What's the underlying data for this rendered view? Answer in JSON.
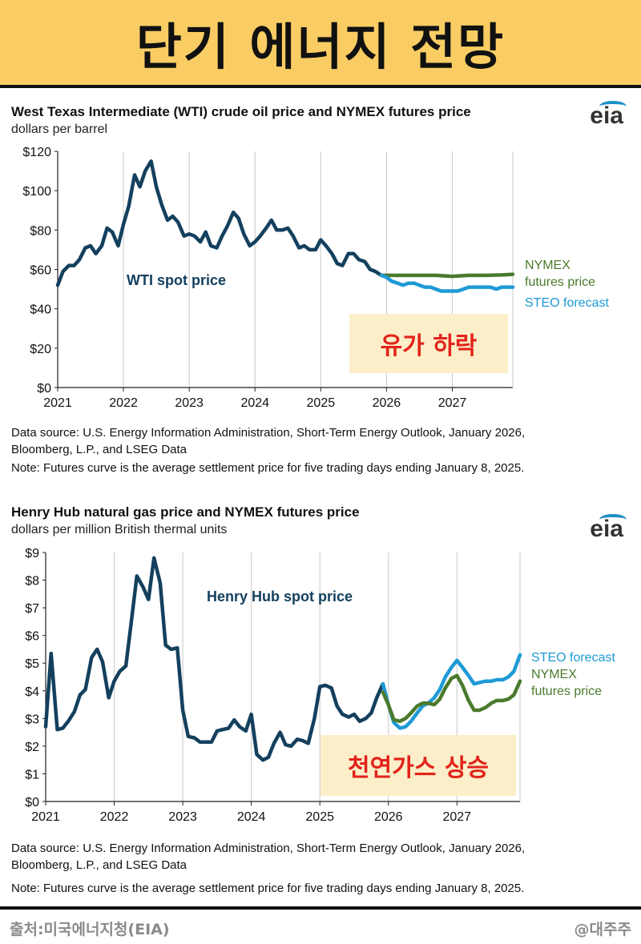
{
  "banner": {
    "title": "단기 에너지 전망"
  },
  "footer": {
    "source": "출처:미국에너지청(EIA)",
    "handle": "@대주주"
  },
  "colors": {
    "banner": "#f9cd63",
    "spot": "#14405e",
    "nymex": "#4a7a2c",
    "steo": "#1e9ad6",
    "callout_bg": "#fbeec9",
    "callout_text": "#e2231a"
  },
  "chart_data": [
    {
      "type": "line",
      "title": "West Texas Intermediate (WTI) crude oil price and NYMEX futures price",
      "ylabel": "dollars per barrel",
      "logo": "eia",
      "xlabel": "",
      "x_ticks": [
        "2021",
        "2022",
        "2023",
        "2024",
        "2025",
        "2026",
        "2027"
      ],
      "y_ticks": [
        "$0",
        "$20",
        "$40",
        "$60",
        "$80",
        "$100",
        "$120"
      ],
      "y_tick_values": [
        0,
        20,
        40,
        60,
        80,
        100,
        120
      ],
      "ylim": [
        0,
        120
      ],
      "xlim": [
        2021.0,
        2027.92
      ],
      "grid": "vertical",
      "series": [
        {
          "name": "WTI spot price",
          "label": "WTI spot price",
          "color": "#14405e",
          "x": [
            2021.0,
            2021.08,
            2021.17,
            2021.25,
            2021.33,
            2021.42,
            2021.5,
            2021.58,
            2021.67,
            2021.75,
            2021.83,
            2021.92,
            2022.0,
            2022.08,
            2022.17,
            2022.25,
            2022.33,
            2022.42,
            2022.5,
            2022.58,
            2022.67,
            2022.75,
            2022.83,
            2022.92,
            2023.0,
            2023.08,
            2023.17,
            2023.25,
            2023.33,
            2023.42,
            2023.5,
            2023.58,
            2023.67,
            2023.75,
            2023.83,
            2023.92,
            2024.0,
            2024.08,
            2024.17,
            2024.25,
            2024.33,
            2024.42,
            2024.5,
            2024.58,
            2024.67,
            2024.75,
            2024.83,
            2024.92,
            2025.0,
            2025.08,
            2025.17,
            2025.25,
            2025.33,
            2025.42,
            2025.5,
            2025.58,
            2025.67,
            2025.75,
            2025.83,
            2025.92
          ],
          "y": [
            52,
            59,
            62,
            62,
            65,
            71,
            72,
            68,
            72,
            81,
            79,
            72,
            83,
            92,
            108,
            102,
            110,
            115,
            102,
            93,
            85,
            87,
            84,
            77,
            78,
            77,
            74,
            79,
            72,
            71,
            77,
            82,
            89,
            86,
            78,
            72,
            74,
            77,
            81,
            85,
            80,
            80,
            81,
            77,
            71,
            72,
            70,
            70,
            75,
            72,
            68,
            63,
            62,
            68,
            68,
            65,
            64,
            60,
            59,
            57
          ]
        },
        {
          "name": "NYMEX futures price",
          "label": "NYMEX futures price",
          "color": "#4a7a2c",
          "x": [
            2025.92,
            2026.0,
            2026.25,
            2026.5,
            2026.75,
            2027.0,
            2027.25,
            2027.5,
            2027.75,
            2027.92
          ],
          "y": [
            57,
            57,
            57,
            57,
            57,
            56.5,
            57,
            57,
            57.2,
            57.5
          ]
        },
        {
          "name": "STEO forecast",
          "label": "STEO forecast",
          "color": "#1e9ad6",
          "x": [
            2025.92,
            2026.0,
            2026.08,
            2026.17,
            2026.25,
            2026.33,
            2026.42,
            2026.5,
            2026.58,
            2026.67,
            2026.75,
            2026.83,
            2026.92,
            2027.0,
            2027.08,
            2027.17,
            2027.25,
            2027.33,
            2027.42,
            2027.5,
            2027.58,
            2027.67,
            2027.75,
            2027.83,
            2027.92
          ],
          "y": [
            57,
            56,
            54,
            53,
            52,
            53,
            53,
            52,
            51,
            51,
            50,
            49,
            49,
            49,
            49,
            50,
            51,
            51,
            51,
            51,
            51,
            50,
            51,
            51,
            51
          ]
        }
      ],
      "callout": "유가 하락",
      "notes": [
        "Data source: U.S. Energy Information Administration, Short-Term Energy Outlook, January 2026,",
        "Bloomberg, L.P., and LSEG Data",
        "Note: Futures curve is the average settlement price for five trading days ending January 8, 2025."
      ]
    },
    {
      "type": "line",
      "title": "Henry Hub natural gas price and NYMEX futures price",
      "ylabel": "dollars per million British thermal units",
      "logo": "eia",
      "xlabel": "",
      "x_ticks": [
        "2021",
        "2022",
        "2023",
        "2024",
        "2025",
        "2026",
        "2027"
      ],
      "y_ticks": [
        "$0",
        "$1",
        "$2",
        "$3",
        "$4",
        "$5",
        "$6",
        "$7",
        "$8",
        "$9"
      ],
      "y_tick_values": [
        0,
        1,
        2,
        3,
        4,
        5,
        6,
        7,
        8,
        9
      ],
      "ylim": [
        0,
        9
      ],
      "xlim": [
        2021.0,
        2027.92
      ],
      "grid": "vertical",
      "series": [
        {
          "name": "Henry Hub spot price",
          "label": "Henry Hub spot price",
          "color": "#14405e",
          "x": [
            2021.0,
            2021.08,
            2021.17,
            2021.25,
            2021.33,
            2021.42,
            2021.5,
            2021.58,
            2021.67,
            2021.75,
            2021.83,
            2021.92,
            2022.0,
            2022.08,
            2022.17,
            2022.25,
            2022.33,
            2022.42,
            2022.5,
            2022.58,
            2022.67,
            2022.75,
            2022.83,
            2022.92,
            2023.0,
            2023.08,
            2023.17,
            2023.25,
            2023.33,
            2023.42,
            2023.5,
            2023.58,
            2023.67,
            2023.75,
            2023.83,
            2023.92,
            2024.0,
            2024.08,
            2024.17,
            2024.25,
            2024.33,
            2024.42,
            2024.5,
            2024.58,
            2024.67,
            2024.75,
            2024.83,
            2024.92,
            2025.0,
            2025.08,
            2025.17,
            2025.25,
            2025.33,
            2025.42,
            2025.5,
            2025.58,
            2025.67,
            2025.75,
            2025.83,
            2025.92
          ],
          "y": [
            2.7,
            5.35,
            2.6,
            2.65,
            2.9,
            3.25,
            3.85,
            4.05,
            5.2,
            5.5,
            5.05,
            3.75,
            4.35,
            4.7,
            4.9,
            6.5,
            8.15,
            7.75,
            7.3,
            8.8,
            7.9,
            5.65,
            5.5,
            5.55,
            3.3,
            2.35,
            2.3,
            2.15,
            2.15,
            2.15,
            2.55,
            2.6,
            2.65,
            2.95,
            2.7,
            2.55,
            3.15,
            1.7,
            1.5,
            1.6,
            2.1,
            2.5,
            2.05,
            2.0,
            2.25,
            2.2,
            2.1,
            3.0,
            4.15,
            4.2,
            4.1,
            3.45,
            3.15,
            3.05,
            3.15,
            2.9,
            3.0,
            3.2,
            3.75,
            4.25
          ]
        },
        {
          "name": "STEO forecast",
          "label": "STEO forecast",
          "color": "#1e9ad6",
          "x": [
            2025.92,
            2026.0,
            2026.08,
            2026.17,
            2026.25,
            2026.33,
            2026.42,
            2026.5,
            2026.58,
            2026.67,
            2026.75,
            2026.83,
            2026.92,
            2027.0,
            2027.08,
            2027.17,
            2027.25,
            2027.33,
            2027.42,
            2027.5,
            2027.58,
            2027.67,
            2027.75,
            2027.83,
            2027.92
          ],
          "y": [
            4.25,
            3.5,
            2.85,
            2.65,
            2.7,
            2.9,
            3.2,
            3.45,
            3.55,
            3.75,
            4.05,
            4.5,
            4.85,
            5.1,
            4.85,
            4.55,
            4.25,
            4.3,
            4.35,
            4.35,
            4.4,
            4.4,
            4.5,
            4.7,
            5.3
          ]
        },
        {
          "name": "NYMEX futures price",
          "label": "NYMEX futures price",
          "color": "#4a7a2c",
          "x": [
            2025.92,
            2026.0,
            2026.08,
            2026.17,
            2026.25,
            2026.33,
            2026.42,
            2026.5,
            2026.58,
            2026.67,
            2026.75,
            2026.83,
            2026.92,
            2027.0,
            2027.08,
            2027.17,
            2027.25,
            2027.33,
            2027.42,
            2027.5,
            2027.58,
            2027.67,
            2027.75,
            2027.83,
            2027.92
          ],
          "y": [
            3.95,
            3.5,
            2.95,
            2.9,
            3.0,
            3.2,
            3.45,
            3.55,
            3.55,
            3.5,
            3.7,
            4.1,
            4.45,
            4.55,
            4.2,
            3.65,
            3.3,
            3.3,
            3.4,
            3.55,
            3.65,
            3.65,
            3.7,
            3.85,
            4.35
          ]
        }
      ],
      "callout": "천연가스 상승",
      "notes": [
        "Data source: U.S. Energy Information Administration, Short-Term Energy Outlook, January 2026,",
        "Bloomberg, L.P., and LSEG Data",
        "Note: Futures curve is the average settlement price for five trading days ending January 8, 2025."
      ]
    }
  ]
}
